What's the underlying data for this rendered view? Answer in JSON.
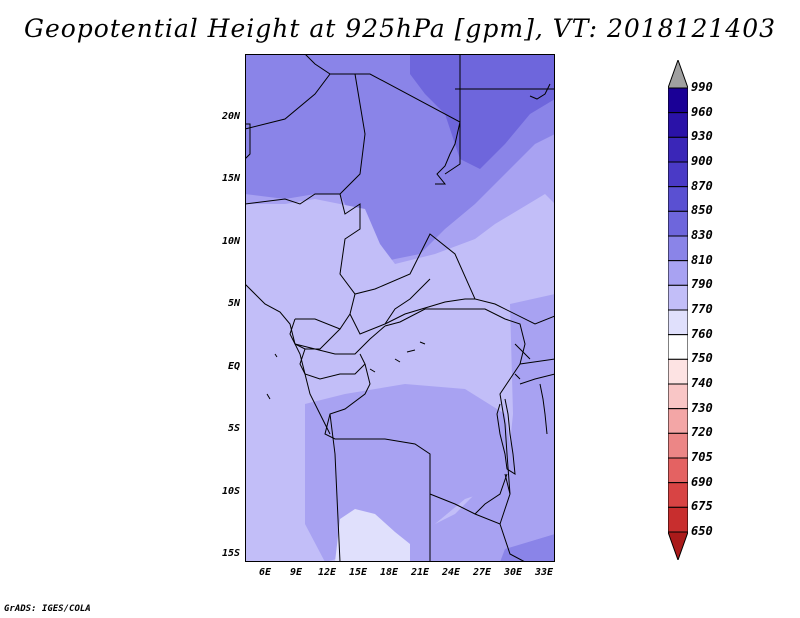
{
  "title": "Geopotential Height at 925hPa [gpm], VT: 2018121403",
  "footer": "GrADS: IGES/COLA",
  "y_axis_labels": [
    "20N",
    "15N",
    "10N",
    "5N",
    "EQ",
    "5S",
    "10S",
    "15S"
  ],
  "x_axis_labels": [
    "6E",
    "9E",
    "12E",
    "15E",
    "18E",
    "21E",
    "24E",
    "27E",
    "30E",
    "33E"
  ],
  "colorbar": {
    "labels": [
      "990",
      "960",
      "930",
      "900",
      "870",
      "850",
      "830",
      "810",
      "790",
      "770",
      "760",
      "750",
      "740",
      "730",
      "720",
      "705",
      "690",
      "675",
      "650"
    ],
    "colors": [
      "#1a0096",
      "#2a12a8",
      "#3a26b8",
      "#4a3ac6",
      "#5a50d2",
      "#6e66dc",
      "#8a84e8",
      "#a8a2f2",
      "#c2bef8",
      "#e0e0fc",
      "#ffffff",
      "#fde3e3",
      "#f9c6c6",
      "#f3a6a6",
      "#ec8686",
      "#e46262",
      "#d84444",
      "#c82e2e",
      "#aa1a1a"
    ],
    "top_arrow_color": "#a0a0a0",
    "bottom_arrow_color": "#aa1a1a"
  },
  "map_colors": {
    "base": "#a8a2f2",
    "low": "#c2bef8",
    "lowest": "#e0e0fc",
    "high": "#8a84e8",
    "highest": "#6e66dc"
  }
}
